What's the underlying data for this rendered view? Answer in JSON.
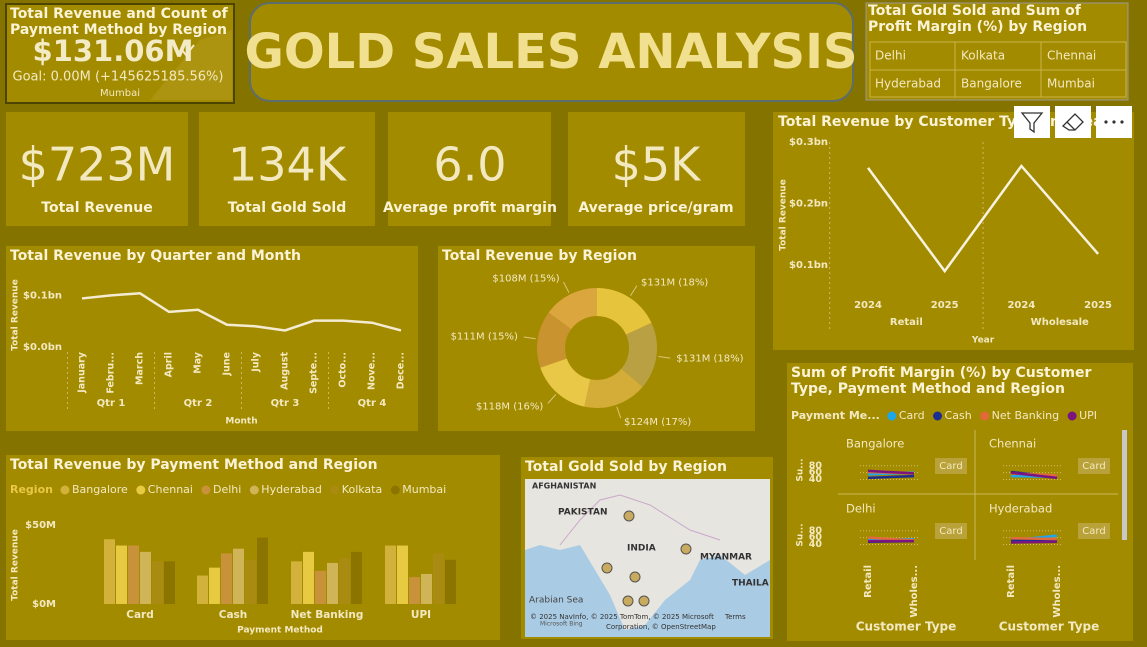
{
  "header": {
    "title": "GOLD SALES ANALYSIS"
  },
  "kpi": {
    "title": "Total Revenue and Count of Payment Method by Region",
    "value": "$131.06M",
    "goal": "Goal: 0.00M (+145625185.56%)",
    "category": "Mumbai"
  },
  "cards": [
    {
      "value": "$723M",
      "label": "Total Revenue"
    },
    {
      "value": "134K",
      "label": "Total Gold Sold"
    },
    {
      "value": "6.0",
      "label": "Average profit margin"
    },
    {
      "value": "$5K",
      "label": "Average price/gram"
    }
  ],
  "slicer": {
    "title": "Total Gold Sold and Sum of Profit Margin (%) by Region",
    "items": [
      "Delhi",
      "Kolkata",
      "Chennai",
      "Hyderabad",
      "Bangalore",
      "Mumbai"
    ]
  },
  "chart_data": [
    {
      "type": "line",
      "title": "Total Revenue by Quarter and Month",
      "x_label": "Month",
      "y_label": "Total Revenue",
      "categories": [
        "January",
        "Febru...",
        "March",
        "April",
        "May",
        "June",
        "July",
        "August",
        "Septe...",
        "Octo...",
        "Nove...",
        "Dece..."
      ],
      "groups": [
        "Qtr 1",
        "Qtr 2",
        "Qtr 3",
        "Qtr 4"
      ],
      "values": [
        0.094,
        0.1,
        0.104,
        0.068,
        0.072,
        0.043,
        0.04,
        0.032,
        0.051,
        0.051,
        0.047,
        0.032
      ],
      "color": "#f4ecd2",
      "ylim": [
        0,
        0.12
      ],
      "yticks": [
        {
          "value": 0,
          "label": "$0.0bn"
        },
        {
          "value": 0.1,
          "label": "$0.1bn"
        }
      ]
    },
    {
      "type": "pie",
      "title": "Total Revenue by Region",
      "values": [
        131,
        131,
        124,
        118,
        111,
        108
      ],
      "value_labels": [
        "$131M (18%)",
        "$131M (18%)",
        "$124M (17%)",
        "$118M (16%)",
        "$111M (15%)",
        "$108M (15%)"
      ],
      "colors": [
        "#e6c43c",
        "#b9a042",
        "#d4ac38",
        "#e8c846",
        "#c9932f",
        "#dba63e"
      ]
    },
    {
      "type": "line",
      "title": "Total Revenue by Customer Type and Year",
      "x_label": "Year",
      "y_label": "Total Revenue",
      "categories": [
        "2024",
        "2025",
        "2024",
        "2025"
      ],
      "groups": [
        "Retail",
        "Wholesale"
      ],
      "values": [
        0.258,
        0.09,
        0.261,
        0.118
      ],
      "color": "#f8f3e0",
      "ylim": [
        0.06,
        0.3
      ],
      "yticks": [
        {
          "value": 0.1,
          "label": "$0.1bn"
        },
        {
          "value": 0.2,
          "label": "$0.2bn"
        },
        {
          "value": 0.3,
          "label": "$0.3bn"
        }
      ]
    },
    {
      "type": "bar",
      "title": "Total Revenue by Payment Method and Region",
      "x_label": "Payment Method",
      "y_label": "Total Revenue",
      "legend_title": "Region",
      "categories": [
        "Card",
        "Cash",
        "Net Banking",
        "UPI"
      ],
      "series": [
        {
          "name": "Bangalore",
          "color": "#d2b23a",
          "values": [
            41,
            18,
            27,
            37
          ]
        },
        {
          "name": "Chennai",
          "color": "#e8ca42",
          "values": [
            37,
            23,
            33,
            37
          ]
        },
        {
          "name": "Delhi",
          "color": "#c8923a",
          "values": [
            37,
            32,
            21,
            17
          ]
        },
        {
          "name": "Hyderabad",
          "color": "#cfb458",
          "values": [
            33,
            35,
            26,
            19
          ]
        },
        {
          "name": "Kolkata",
          "color": "#a98b12",
          "values": [
            27,
            28,
            29,
            32
          ]
        },
        {
          "name": "Mumbai",
          "color": "#8c7400",
          "values": [
            27,
            42,
            33,
            28
          ]
        }
      ],
      "ylim": [
        0,
        60
      ],
      "yticks": [
        {
          "value": 0,
          "label": "$0M"
        },
        {
          "value": 50,
          "label": "$50M"
        }
      ]
    },
    {
      "type": "line",
      "title": "Sum of Profit Margin (%) by Customer Type, Payment Method and Region",
      "legend_title": "Payment Me...",
      "y_label": "Su...",
      "x_label": "Customer Type",
      "annotation": "Card",
      "panels": [
        "Bangalore",
        "Chennai",
        "Delhi",
        "Hyderabad"
      ],
      "categories": [
        "Retail",
        "Wholes..."
      ],
      "series": [
        {
          "name": "Card",
          "color": "#1ea6ea",
          "values": [
            [
              55,
              60
            ],
            [
              50,
              48
            ],
            [
              55,
              55
            ],
            [
              52,
              66
            ]
          ]
        },
        {
          "name": "Cash",
          "color": "#1c2e8f",
          "values": [
            [
              45,
              50
            ],
            [
              62,
              48
            ],
            [
              48,
              50
            ],
            [
              52,
              55
            ]
          ]
        },
        {
          "name": "Net Banking",
          "color": "#e4693a",
          "values": [
            [
              62,
              58
            ],
            [
              58,
              52
            ],
            [
              60,
              52
            ],
            [
              58,
              56
            ]
          ]
        },
        {
          "name": "UPI",
          "color": "#7a1580",
          "values": [
            [
              65,
              58
            ],
            [
              60,
              45
            ],
            [
              50,
              50
            ],
            [
              46,
              48
            ]
          ]
        }
      ],
      "ylim": [
        30,
        90
      ],
      "yticks": [
        40,
        60,
        80
      ]
    }
  ],
  "map": {
    "title": "Total Gold Sold by Region",
    "labels": [
      "AFGHANISTAN",
      "PAKISTAN",
      "INDIA",
      "MYANMAR",
      "THAILA",
      "Arabian Sea"
    ],
    "credit": "© 2025 NavInfo, © 2025 TomTom, © 2025 Microsoft",
    "credit2": "Corporation, © OpenStreetMap",
    "terms": "Terms",
    "brand": "Microsoft Bing"
  }
}
